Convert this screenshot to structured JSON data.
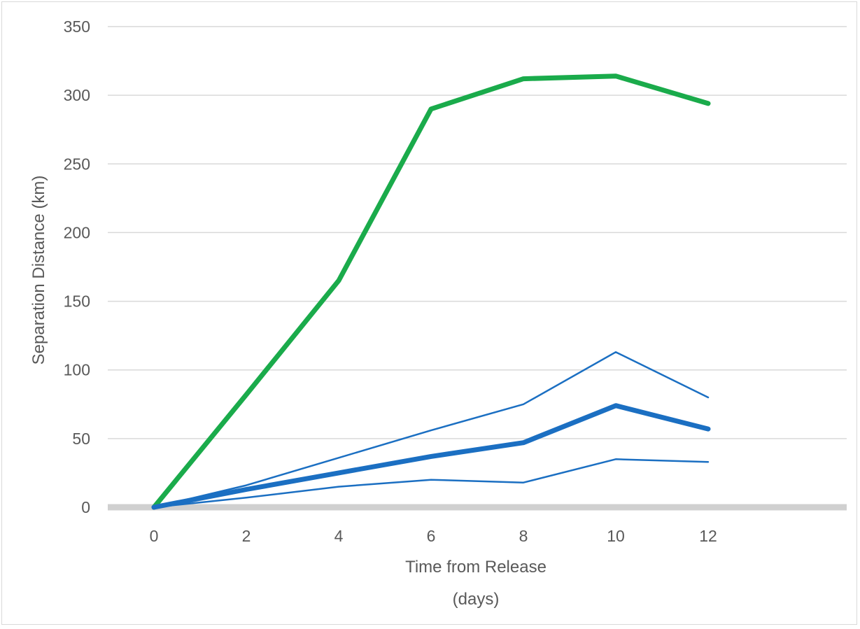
{
  "chart_data": {
    "type": "line",
    "title": "",
    "xlabel_lines": [
      "Time from Release",
      "(days)"
    ],
    "ylabel": "Separation Distance (km)",
    "xlim": [
      -1,
      15
    ],
    "ylim": [
      0,
      350
    ],
    "x_ticks": [
      0,
      2,
      4,
      6,
      8,
      10,
      12
    ],
    "y_ticks": [
      0,
      50,
      100,
      150,
      200,
      250,
      300,
      350
    ],
    "grid": true,
    "legend": "none",
    "colors": {
      "green": "#1aab4b",
      "blue": "#1b6fc2",
      "grid": "#d9d9d9",
      "zero_axis": "#d0d0d0",
      "text": "#595959"
    },
    "series": [
      {
        "x": [
          0,
          2,
          4,
          6,
          8,
          10,
          12
        ],
        "y": [
          0,
          82,
          165,
          290,
          312,
          314,
          294
        ],
        "color": "#1aab4b",
        "width": 7
      },
      {
        "x": [
          0,
          2,
          4,
          6,
          8,
          10,
          12
        ],
        "y": [
          0,
          16,
          36,
          56,
          75,
          113,
          80
        ],
        "color": "#1b6fc2",
        "width": 2.5
      },
      {
        "x": [
          0,
          2,
          4,
          6,
          8,
          10,
          12
        ],
        "y": [
          0,
          13,
          25,
          37,
          47,
          74,
          57
        ],
        "color": "#1b6fc2",
        "width": 7
      },
      {
        "x": [
          0,
          2,
          4,
          6,
          8,
          10,
          12
        ],
        "y": [
          0,
          7,
          15,
          20,
          18,
          35,
          33
        ],
        "color": "#1b6fc2",
        "width": 2.5
      }
    ]
  }
}
